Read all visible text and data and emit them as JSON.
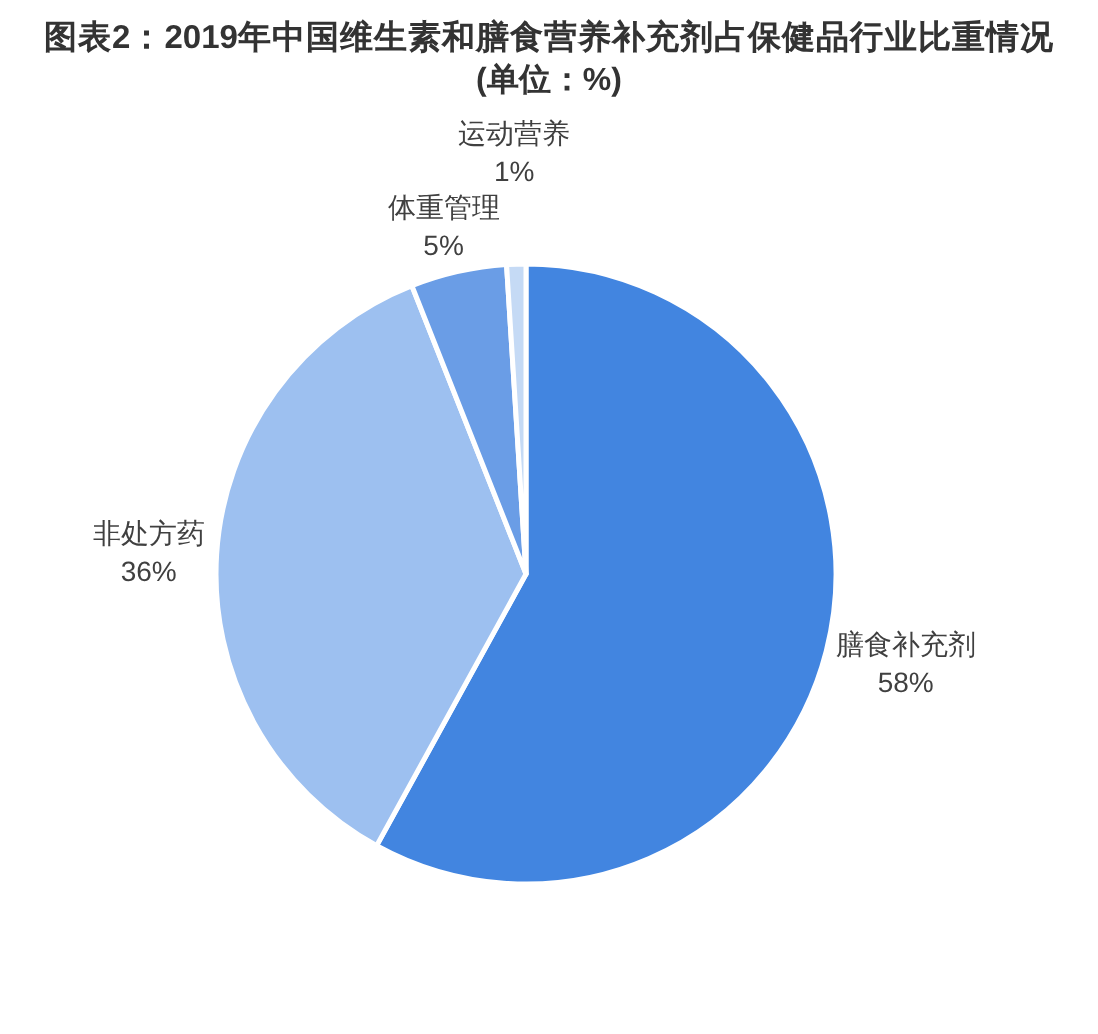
{
  "chart_data": {
    "type": "pie",
    "title": "图表2：2019年中国维生素和膳食营养补充剂占保健品行业比重情况",
    "subtitle": "(单位：%)",
    "categories": [
      "膳食补充剂",
      "非处方药",
      "体重管理",
      "运动营养"
    ],
    "values": [
      58,
      36,
      5,
      1
    ],
    "colors": [
      "#4285e0",
      "#9dc0f0",
      "#6a9de6",
      "#c5daf5"
    ],
    "value_labels": [
      "58%",
      "36%",
      "5%",
      "1%"
    ]
  }
}
